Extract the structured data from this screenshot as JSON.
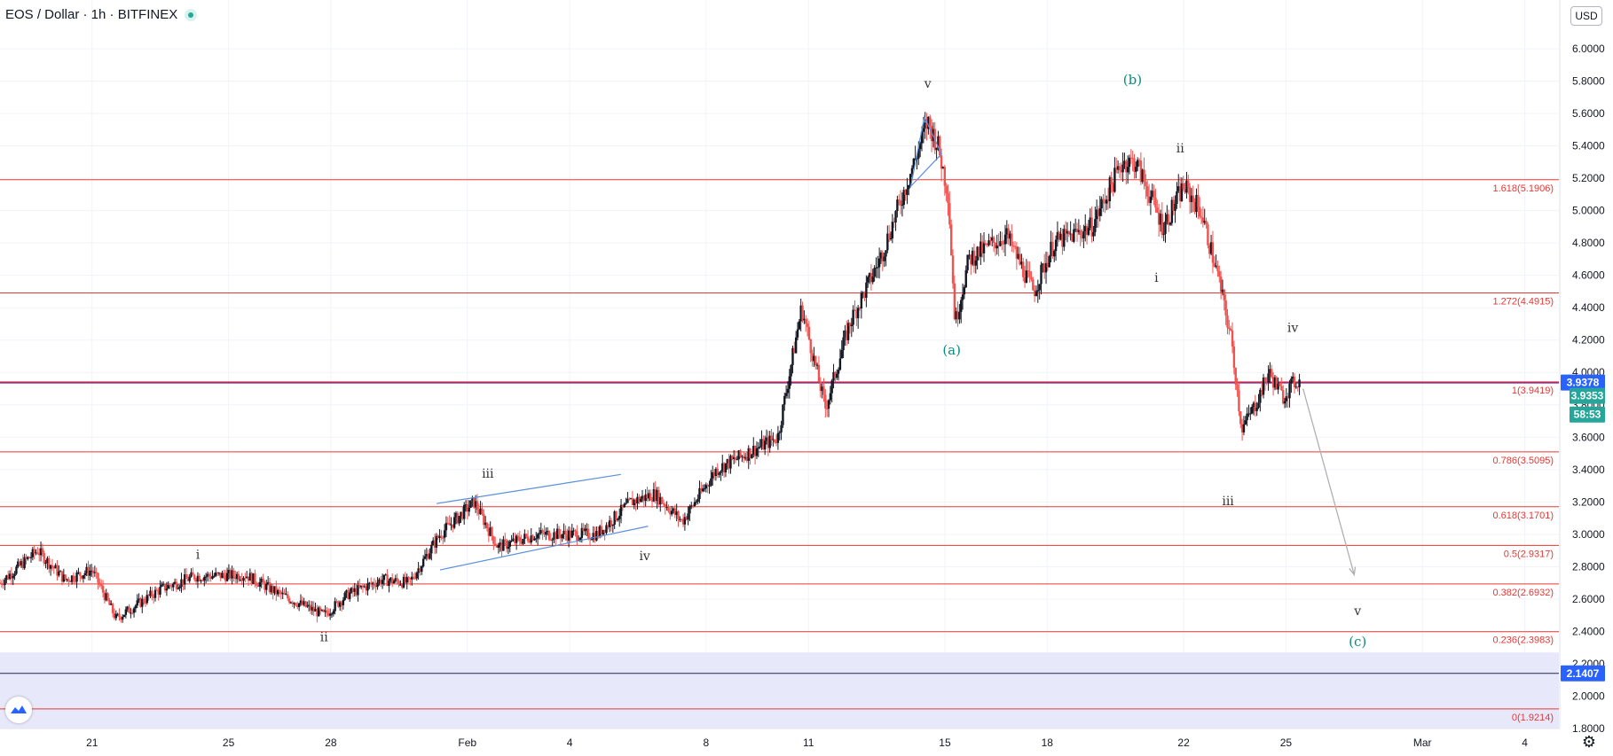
{
  "header": {
    "title": "EOS / Dollar · 1h · BITFINEX",
    "currency_button": "USD"
  },
  "colors": {
    "up": "#26a69a",
    "down": "#ef5350",
    "candle": "#131722",
    "fib": "#e53935",
    "fib_text": "#e53935",
    "last_line": "#7b1fa2",
    "channel": "#5b8fdb",
    "wave_label": "#333333",
    "corr_label": "#0b8a7b",
    "zone": "#e8e8fb",
    "blue_tag": "#2962ff"
  },
  "chart_data": {
    "type": "candlestick",
    "title": "EOS / Dollar · 1h · BITFINEX",
    "xlabel": "",
    "ylabel": "",
    "ylim": [
      1.75,
      6.2
    ],
    "x_axis_ticks": [
      {
        "label": "21",
        "day": 21
      },
      {
        "label": "25",
        "day": 25
      },
      {
        "label": "28",
        "day": 28
      },
      {
        "label": "Feb",
        "day": 32
      },
      {
        "label": "4",
        "day": 35
      },
      {
        "label": "8",
        "day": 39
      },
      {
        "label": "11",
        "day": 42
      },
      {
        "label": "15",
        "day": 46
      },
      {
        "label": "18",
        "day": 49
      },
      {
        "label": "22",
        "day": 53
      },
      {
        "label": "25",
        "day": 56
      },
      {
        "label": "Mar",
        "day": 60
      },
      {
        "label": "4",
        "day": 63
      }
    ],
    "y_axis_ticks": [
      "6.0000",
      "5.8000",
      "5.6000",
      "5.4000",
      "5.2000",
      "5.0000",
      "4.8000",
      "4.6000",
      "4.4000",
      "4.2000",
      "4.0000",
      "3.8000",
      "3.6000",
      "3.4000",
      "3.2000",
      "3.0000",
      "2.8000",
      "2.6000",
      "2.4000",
      "2.2000",
      "2.0000",
      "1.8000"
    ],
    "price_path": [
      [
        18.3,
        2.7
      ],
      [
        19.4,
        2.9
      ],
      [
        20.2,
        2.72
      ],
      [
        21.0,
        2.78
      ],
      [
        21.7,
        2.48
      ],
      [
        23.0,
        2.66
      ],
      [
        24.0,
        2.74
      ],
      [
        25.5,
        2.75
      ],
      [
        26.5,
        2.63
      ],
      [
        27.8,
        2.5
      ],
      [
        28.5,
        2.63
      ],
      [
        29.5,
        2.72
      ],
      [
        30.3,
        2.7
      ],
      [
        31.2,
        3.0
      ],
      [
        32.2,
        3.2
      ],
      [
        32.9,
        2.92
      ],
      [
        34.0,
        3.0
      ],
      [
        35.8,
        3.0
      ],
      [
        36.8,
        3.2
      ],
      [
        37.5,
        3.25
      ],
      [
        38.3,
        3.08
      ],
      [
        39.3,
        3.4
      ],
      [
        41.1,
        3.6
      ],
      [
        41.8,
        4.4
      ],
      [
        42.5,
        3.78
      ],
      [
        43.2,
        4.3
      ],
      [
        44.1,
        4.7
      ],
      [
        45.1,
        5.3
      ],
      [
        45.5,
        5.55
      ],
      [
        45.8,
        5.4
      ],
      [
        46.1,
        5.1
      ],
      [
        46.3,
        4.3
      ],
      [
        46.7,
        4.7
      ],
      [
        47.8,
        4.85
      ],
      [
        48.6,
        4.5
      ],
      [
        49.2,
        4.8
      ],
      [
        50.3,
        4.9
      ],
      [
        51.2,
        5.3
      ],
      [
        51.6,
        5.3
      ],
      [
        52.4,
        4.9
      ],
      [
        53.0,
        5.15
      ],
      [
        53.5,
        5.0
      ],
      [
        54.0,
        4.6
      ],
      [
        54.4,
        4.2
      ],
      [
        54.7,
        3.65
      ],
      [
        55.1,
        3.8
      ],
      [
        55.5,
        4.0
      ],
      [
        55.9,
        3.85
      ],
      [
        56.3,
        3.95
      ],
      [
        56.4,
        3.94
      ]
    ],
    "series": [
      {
        "name": "fibonacci_levels",
        "levels": [
          {
            "label": "1.618(5.1906)",
            "value": 5.1906
          },
          {
            "label": "1.272(4.4915)",
            "value": 4.4915
          },
          {
            "label": "1(3.9419)",
            "value": 3.9419
          },
          {
            "label": "0.786(3.5095)",
            "value": 3.5095
          },
          {
            "label": "0.618(3.1701)",
            "value": 3.1701
          },
          {
            "label": "0.5(2.9317)",
            "value": 2.9317
          },
          {
            "label": "0.382(2.6932)",
            "value": 2.6932
          },
          {
            "label": "0.236(2.3983)",
            "value": 2.3983
          },
          {
            "label": "0(1.9214)",
            "value": 1.9214
          }
        ]
      }
    ],
    "zone": {
      "from": 1.75,
      "to": 2.27
    },
    "horizontal_lines": [
      {
        "value": 3.9378,
        "tag": "3.9378",
        "color": "#7b1fa2"
      },
      {
        "value": 2.1407,
        "tag": "2.1407",
        "color": "#1c2a5a"
      }
    ],
    "price_tags": [
      {
        "value": 3.9353,
        "text": "3.9353"
      },
      {
        "value": 3.79,
        "text": "58:53"
      }
    ],
    "wave_labels": [
      {
        "text": "i",
        "day": 24.1,
        "price": 2.85,
        "style": "wave"
      },
      {
        "text": "ii",
        "day": 27.8,
        "price": 2.34,
        "style": "wave"
      },
      {
        "text": "iii",
        "day": 32.6,
        "price": 3.35,
        "style": "wave"
      },
      {
        "text": "iv",
        "day": 37.2,
        "price": 2.84,
        "style": "wave"
      },
      {
        "text": "v",
        "day": 45.5,
        "price": 5.76,
        "style": "wave"
      },
      {
        "text": "(a)",
        "day": 46.2,
        "price": 4.11,
        "style": "corr"
      },
      {
        "text": "(b)",
        "day": 51.5,
        "price": 5.78,
        "style": "corr"
      },
      {
        "text": "i",
        "day": 52.2,
        "price": 4.56,
        "style": "wave"
      },
      {
        "text": "ii",
        "day": 52.9,
        "price": 5.36,
        "style": "wave"
      },
      {
        "text": "iii",
        "day": 54.3,
        "price": 3.18,
        "style": "wave"
      },
      {
        "text": "iv",
        "day": 56.2,
        "price": 4.25,
        "style": "wave"
      },
      {
        "text": "v",
        "day": 58.1,
        "price": 2.5,
        "style": "wave"
      },
      {
        "text": "(c)",
        "day": 58.1,
        "price": 2.31,
        "style": "corr"
      }
    ],
    "channel_lines": [
      [
        [
          31.2,
          2.78
        ],
        [
          37.3,
          3.05
        ]
      ],
      [
        [
          31.1,
          3.19
        ],
        [
          36.5,
          3.37
        ]
      ]
    ],
    "triangle": [
      [
        45.4,
        5.58
      ],
      [
        45.0,
        5.15
      ],
      [
        45.9,
        5.35
      ]
    ],
    "projection_arrow": [
      [
        56.5,
        3.9
      ],
      [
        58.0,
        2.75
      ]
    ],
    "x_domain": [
      18.3,
      64.0
    ]
  }
}
